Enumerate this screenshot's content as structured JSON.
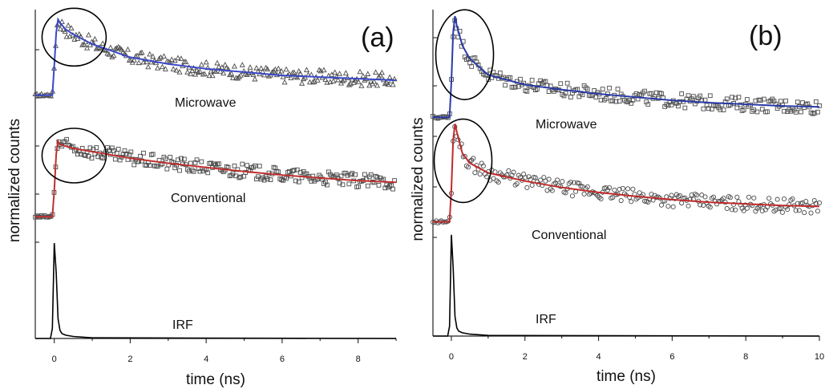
{
  "chart_data": [
    {
      "type": "line",
      "panel_label": "(a)",
      "xlabel": "time (ns)",
      "ylabel": "normalized counts",
      "xlim": [
        -0.5,
        9.0
      ],
      "x_ticks": [
        0,
        2,
        4,
        6,
        8
      ],
      "legend": "none",
      "grid": false,
      "series": [
        {
          "name": "Microwave",
          "color": "#3a48c8",
          "marker": "triangle",
          "baseline": 0.74,
          "peak": 0.97,
          "x": [
            -0.5,
            -0.05,
            0.0,
            0.05,
            0.1,
            0.15,
            0.3,
            0.5,
            1,
            2,
            3,
            4,
            5,
            6,
            7,
            8,
            9
          ],
          "y": [
            0.74,
            0.74,
            0.83,
            0.93,
            0.97,
            0.96,
            0.94,
            0.925,
            0.895,
            0.855,
            0.835,
            0.82,
            0.81,
            0.8,
            0.795,
            0.79,
            0.785
          ]
        },
        {
          "name": "Conventional",
          "color": "#c03030",
          "marker": "square",
          "baseline": 0.37,
          "peak": 0.6,
          "x": [
            -0.5,
            -0.05,
            0.0,
            0.05,
            0.1,
            0.15,
            0.3,
            0.5,
            1,
            2,
            3,
            4,
            5,
            6,
            7,
            8,
            9
          ],
          "y": [
            0.37,
            0.37,
            0.45,
            0.56,
            0.6,
            0.59,
            0.585,
            0.578,
            0.568,
            0.548,
            0.533,
            0.52,
            0.508,
            0.497,
            0.488,
            0.48,
            0.475
          ]
        },
        {
          "name": "IRF",
          "color": "#000000",
          "marker": "none",
          "baseline": 0.0,
          "peak": 0.29,
          "x": [
            -0.5,
            -0.1,
            -0.05,
            0.0,
            0.05,
            0.1,
            0.15,
            0.2,
            0.3,
            0.5,
            1,
            9
          ],
          "y": [
            0.0,
            0.0,
            0.03,
            0.29,
            0.2,
            0.06,
            0.025,
            0.015,
            0.01,
            0.006,
            0.002,
            0.0
          ]
        }
      ]
    },
    {
      "type": "line",
      "panel_label": "(b)",
      "xlabel": "time (ns)",
      "ylabel": "normalized counts",
      "xlim": [
        -0.5,
        10.0
      ],
      "x_ticks": [
        0,
        2,
        4,
        6,
        8,
        10
      ],
      "legend": "none",
      "grid": false,
      "series": [
        {
          "name": "Microwave",
          "color": "#2a3aa8",
          "marker": "square",
          "baseline": 0.67,
          "peak": 0.98,
          "x": [
            -0.5,
            -0.05,
            0.0,
            0.05,
            0.1,
            0.15,
            0.3,
            0.5,
            1,
            2,
            3,
            4,
            5,
            6,
            7,
            8,
            9,
            10
          ],
          "y": [
            0.67,
            0.67,
            0.78,
            0.93,
            0.98,
            0.95,
            0.89,
            0.85,
            0.8,
            0.77,
            0.755,
            0.742,
            0.732,
            0.722,
            0.715,
            0.71,
            0.705,
            0.702
          ]
        },
        {
          "name": "Conventional",
          "color": "#c02a2a",
          "marker": "circle",
          "baseline": 0.35,
          "peak": 0.65,
          "x": [
            -0.5,
            -0.05,
            0.0,
            0.05,
            0.1,
            0.15,
            0.3,
            0.5,
            1,
            2,
            3,
            4,
            5,
            6,
            7,
            8,
            9,
            10
          ],
          "y": [
            0.35,
            0.35,
            0.45,
            0.6,
            0.65,
            0.625,
            0.56,
            0.53,
            0.5,
            0.475,
            0.455,
            0.44,
            0.428,
            0.418,
            0.41,
            0.405,
            0.4,
            0.397
          ]
        },
        {
          "name": "IRF",
          "color": "#000000",
          "marker": "none",
          "baseline": 0.0,
          "peak": 0.31,
          "x": [
            -0.5,
            -0.1,
            -0.05,
            0.0,
            0.05,
            0.1,
            0.15,
            0.2,
            0.3,
            0.5,
            1,
            10
          ],
          "y": [
            0.0,
            0.0,
            0.03,
            0.31,
            0.21,
            0.06,
            0.025,
            0.015,
            0.01,
            0.006,
            0.002,
            0.0
          ]
        }
      ]
    }
  ]
}
